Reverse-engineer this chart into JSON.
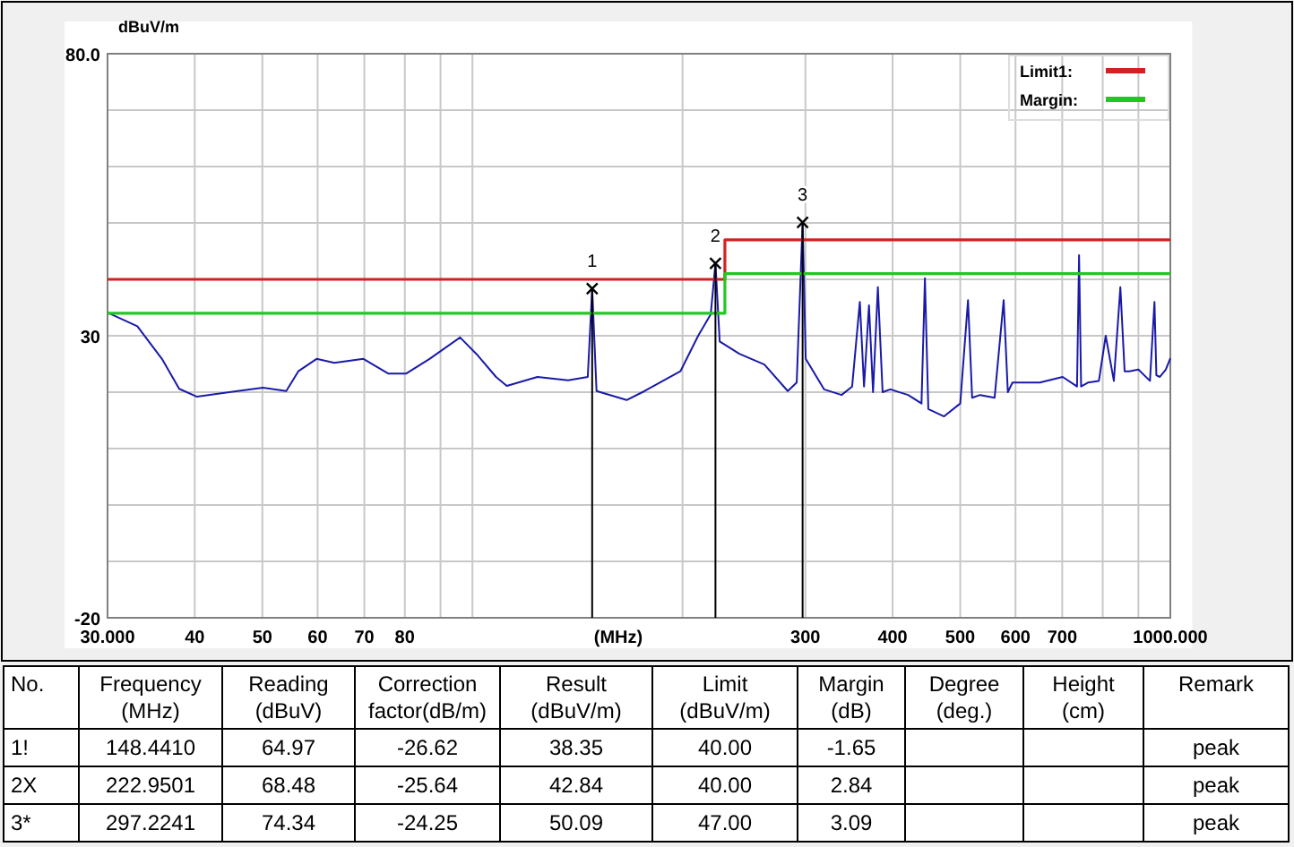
{
  "chart_data": {
    "type": "line",
    "xlabel": "(MHz)",
    "ylabel": "dBuV/m",
    "log": "x",
    "grid": true,
    "legend": "top right",
    "marker": "none",
    "line_style": "solid",
    "xlim": [
      30,
      1000
    ],
    "ylim": [
      -20,
      80
    ],
    "xticks": [
      {
        "value": 30,
        "label": "30.000"
      },
      40,
      50,
      60,
      70,
      80,
      {
        "value": 90,
        "label": null
      },
      {
        "value": 100,
        "label": null
      },
      {
        "value": 200,
        "label": null
      },
      300,
      400,
      500,
      600,
      700,
      {
        "value": 800,
        "label": null
      },
      {
        "value": 900,
        "label": null
      },
      {
        "value": 1000,
        "label": "1000.000"
      }
    ],
    "yticks": [
      -20,
      {
        "value": -10,
        "label": null
      },
      {
        "value": 0,
        "label": null
      },
      {
        "value": 10,
        "label": null
      },
      {
        "value": 20,
        "label": null
      },
      30,
      {
        "value": 40,
        "label": null
      },
      {
        "value": 50,
        "label": null
      },
      {
        "value": 60,
        "label": null
      },
      {
        "value": 70,
        "label": null
      },
      {
        "value": 80,
        "label": "80.0"
      }
    ],
    "series": [
      {
        "color": "#1a1aa8",
        "x": [
          30,
          33.1,
          35.9,
          38,
          40.3,
          46.1,
          50.1,
          54.1,
          56.3,
          59.8,
          63.4,
          69.8,
          75.7,
          80.4,
          86.8,
          96,
          101.8,
          108.1,
          112,
          123.9,
          137.1,
          146.3,
          148.441,
          150.6,
          166.3,
          176.5,
          198.6,
          210.6,
          219.5,
          222.9501,
          226.1,
          241.2,
          262,
          283,
          291.5,
          297.2241,
          300.3,
          319,
          338,
          350,
          359,
          364,
          370,
          375,
          381,
          387,
          397,
          421,
          440,
          445,
          450,
          474,
          500,
          513,
          520,
          534,
          560,
          577,
          585,
          594,
          650,
          701,
          735,
          740,
          745,
          762,
          790,
          808,
          830,
          848,
          860,
          873,
          900,
          935,
          949,
          955,
          966,
          985,
          1000
        ],
        "values": [
          34.1,
          31.7,
          25.9,
          20.6,
          19.2,
          20.2,
          20.8,
          20.2,
          23.7,
          25.9,
          25.2,
          25.9,
          23.3,
          23.3,
          25.9,
          29.7,
          26.5,
          22.7,
          21.1,
          22.7,
          22.1,
          22.7,
          38.35,
          20.2,
          18.6,
          20.2,
          23.7,
          30,
          33.8,
          42.84,
          29,
          26.8,
          24.9,
          20.2,
          21.7,
          50.09,
          25.9,
          20.5,
          19.5,
          21,
          36,
          21,
          35.4,
          20,
          38.6,
          20,
          20.5,
          19.5,
          18,
          40.2,
          17,
          15.7,
          18,
          36.3,
          19,
          19.5,
          19,
          36.3,
          20,
          21.7,
          21.7,
          22.7,
          21,
          44.3,
          21,
          21.7,
          22,
          30,
          22,
          38.6,
          23.7,
          23.7,
          24,
          22,
          36,
          23,
          22.7,
          24,
          26
        ]
      },
      {
        "name": "Limit1:",
        "color": "#d42020",
        "x": [
          30,
          230,
          230,
          1000
        ],
        "values": [
          40,
          40,
          47,
          47
        ]
      },
      {
        "name": "Margin:",
        "color": "#20c820",
        "x": [
          30,
          230,
          230,
          1000
        ],
        "values": [
          34,
          34,
          41,
          41
        ]
      }
    ],
    "annotations": [
      {
        "text": "1",
        "x": 148.441,
        "y": 38.35
      },
      {
        "text": "2",
        "x": 222.9501,
        "y": 42.84
      },
      {
        "text": "3",
        "x": 297.2241,
        "y": 50.09
      },
      "No.",
      "Frequency\n(MHz)",
      "Reading\n(dBuV)",
      "Correction\nfactor(dB/m)",
      "Result\n(dBuV/m)",
      "Limit\n(dBuV/m)",
      "Margin\n(dB)",
      "Degree\n(deg.)",
      "Height\n(cm)",
      "Remark",
      "1!",
      "148.4410",
      "64.97",
      "-26.62",
      "38.35",
      "40.00",
      "-1.65",
      null,
      null,
      "peak",
      "2X",
      "222.9501",
      "68.48",
      "-25.64",
      "42.84",
      "40.00",
      "2.84",
      null,
      null,
      "peak",
      "3*",
      "297.2241",
      "74.34",
      "-24.25",
      "50.09",
      "47.00",
      "3.09",
      null,
      null,
      "peak"
    ]
  }
}
